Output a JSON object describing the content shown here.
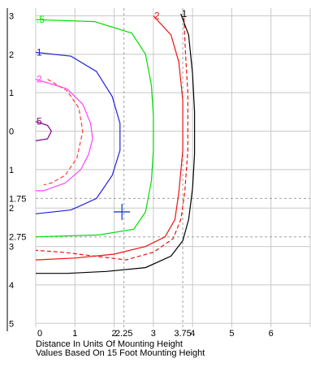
{
  "chart_data": {
    "type": "line",
    "title": "",
    "xlabel": "Distance In Units Of Mounting Height",
    "note": "Values Based On 15 Foot Mounting Height",
    "x_ticks": [
      "0",
      "1",
      "2",
      "2.25",
      "3",
      "3.75",
      "4",
      "5",
      "6"
    ],
    "y_ticks": [
      {
        "label": "3",
        "y": -3
      },
      {
        "label": "2",
        "y": -2
      },
      {
        "label": "1",
        "y": -1
      },
      {
        "label": "0",
        "y": 0
      },
      {
        "label": "1",
        "y": 1
      },
      {
        "label": "1.75",
        "y": 1.75
      },
      {
        "label": "2",
        "y": 2
      },
      {
        "label": "2.75",
        "y": 2.75
      },
      {
        "label": "3",
        "y": 3
      },
      {
        "label": "4",
        "y": 4
      },
      {
        "label": "5",
        "y": 5
      }
    ],
    "xlim": [
      0,
      7
    ],
    "ylim": [
      -3.2,
      5.1
    ],
    "grid": true,
    "reference_lines": {
      "x": [
        2.25,
        3.75
      ],
      "y": [
        1.75,
        2.75
      ]
    },
    "marker": {
      "symbol": "+",
      "x": 2.2,
      "y": 2.1,
      "color": "#1f3fbf"
    },
    "series": [
      {
        "name": "5",
        "color": "#800080",
        "style": "solid",
        "points": [
          [
            0,
            -0.25
          ],
          [
            0.3,
            -0.15
          ],
          [
            0.4,
            0
          ],
          [
            0.3,
            0.2
          ],
          [
            0,
            0.25
          ]
        ]
      },
      {
        "name": "2",
        "color": "#ff40ff",
        "style": "solid",
        "points": [
          [
            0,
            -1.35
          ],
          [
            0.8,
            -1.1
          ],
          [
            1.2,
            -0.7
          ],
          [
            1.4,
            -0.2
          ],
          [
            1.45,
            0.2
          ],
          [
            1.35,
            0.6
          ],
          [
            1.15,
            1
          ],
          [
            0.75,
            1.35
          ],
          [
            0.2,
            1.55
          ],
          [
            0,
            1.55
          ]
        ]
      },
      {
        "name": "",
        "color": "#ff4040",
        "style": "dashed",
        "points": [
          [
            0.3,
            -1.35
          ],
          [
            0.8,
            -1.05
          ],
          [
            1.1,
            -0.6
          ],
          [
            1.2,
            0
          ],
          [
            1.05,
            0.7
          ],
          [
            0.75,
            1.15
          ],
          [
            0.4,
            1.35
          ],
          [
            0.2,
            1.4
          ]
        ]
      },
      {
        "name": "1",
        "color": "#2020e0",
        "style": "solid",
        "points": [
          [
            0,
            -2.05
          ],
          [
            0.9,
            -1.95
          ],
          [
            1.55,
            -1.55
          ],
          [
            1.95,
            -0.9
          ],
          [
            2.15,
            -0.2
          ],
          [
            2.15,
            0.5
          ],
          [
            1.95,
            1.15
          ],
          [
            1.55,
            1.75
          ],
          [
            0.9,
            2.05
          ],
          [
            0,
            2.15
          ]
        ]
      },
      {
        "name": ".5",
        "color": "#00dd00",
        "style": "solid",
        "points": [
          [
            0,
            -2.9
          ],
          [
            1.5,
            -2.85
          ],
          [
            2.45,
            -2.55
          ],
          [
            2.8,
            -2
          ],
          [
            2.95,
            -1.2
          ],
          [
            3.0,
            -0.4
          ],
          [
            3.0,
            0.5
          ],
          [
            2.95,
            1.3
          ],
          [
            2.8,
            2.1
          ],
          [
            2.5,
            2.55
          ],
          [
            1.6,
            2.7
          ],
          [
            0,
            2.75
          ]
        ]
      },
      {
        "name": "2",
        "color": "#ee1111",
        "style": "solid",
        "points": [
          [
            3.0,
            -3.0
          ],
          [
            3.45,
            -2.5
          ],
          [
            3.65,
            -1.8
          ],
          [
            3.75,
            -0.8
          ],
          [
            3.75,
            0.5
          ],
          [
            3.65,
            1.6
          ],
          [
            3.55,
            2.3
          ],
          [
            3.3,
            2.75
          ],
          [
            2.8,
            3.0
          ],
          [
            2.0,
            3.2
          ],
          [
            1.0,
            3.3
          ],
          [
            0,
            3.35
          ]
        ]
      },
      {
        "name": "",
        "color": "#ee1111",
        "style": "dashed",
        "points": [
          [
            3.78,
            -2.95
          ],
          [
            3.82,
            -2
          ],
          [
            3.88,
            -1
          ],
          [
            3.88,
            0.5
          ],
          [
            3.8,
            1.6
          ],
          [
            3.7,
            2.3
          ],
          [
            3.5,
            2.8
          ],
          [
            3.0,
            3.15
          ],
          [
            2.3,
            3.35
          ],
          [
            1.5,
            3.25
          ],
          [
            0.7,
            3.15
          ],
          [
            0,
            3.1
          ]
        ]
      },
      {
        "name": "1",
        "color": "#000000",
        "style": "solid",
        "points": [
          [
            3.7,
            -3.05
          ],
          [
            3.9,
            -2.5
          ],
          [
            4.0,
            -1.5
          ],
          [
            4.05,
            -0.5
          ],
          [
            4.05,
            0.6
          ],
          [
            4.0,
            1.5
          ],
          [
            3.9,
            2.3
          ],
          [
            3.75,
            2.85
          ],
          [
            3.45,
            3.25
          ],
          [
            2.8,
            3.55
          ],
          [
            1.8,
            3.65
          ],
          [
            0.8,
            3.7
          ],
          [
            0,
            3.7
          ]
        ]
      }
    ]
  }
}
